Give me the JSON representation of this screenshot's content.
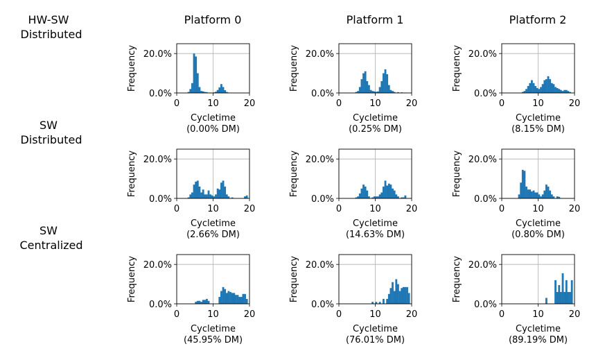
{
  "row_labels": [
    [
      "HW-SW",
      "Distributed"
    ],
    [
      "SW",
      "Distributed"
    ],
    [
      "SW",
      "Centralized"
    ]
  ],
  "column_titles": [
    "Platform 0",
    "Platform 1",
    "Platform 2"
  ],
  "bar_color": "#1f77b4",
  "chart_data": [
    {
      "type": "bar",
      "row": 0,
      "col": 0,
      "xlabel": "Cycletime",
      "subtitle": "(0.00% DM)",
      "ylabel": "Frequency",
      "xlim": [
        0,
        20
      ],
      "ylim": [
        0,
        0.25
      ],
      "xticks": [
        "0",
        "10",
        "20"
      ],
      "yticks": [
        "0.0%",
        "20.0%"
      ],
      "grid": true,
      "bin_width": 0.5,
      "bins": [
        [
          3,
          0.005
        ],
        [
          3.5,
          0.02
        ],
        [
          4,
          0.05
        ],
        [
          4.5,
          0.2
        ],
        [
          5,
          0.185
        ],
        [
          5.5,
          0.1
        ],
        [
          6,
          0.03
        ],
        [
          6.5,
          0.01
        ],
        [
          7,
          0.008
        ],
        [
          7.5,
          0.005
        ],
        [
          8,
          0.004
        ],
        [
          9,
          0.002
        ],
        [
          10,
          0.003
        ],
        [
          10.5,
          0.006
        ],
        [
          11,
          0.015
        ],
        [
          11.5,
          0.028
        ],
        [
          12,
          0.045
        ],
        [
          12.5,
          0.03
        ],
        [
          13,
          0.014
        ],
        [
          13.5,
          0.005
        ],
        [
          14,
          0.002
        ]
      ]
    },
    {
      "type": "bar",
      "row": 0,
      "col": 1,
      "xlabel": "Cycletime",
      "subtitle": "(0.25% DM)",
      "ylabel": "Frequency",
      "xlim": [
        0,
        20
      ],
      "ylim": [
        0,
        0.25
      ],
      "xticks": [
        "0",
        "10",
        "20"
      ],
      "yticks": [
        "0.0%",
        "20.0%"
      ],
      "grid": true,
      "bin_width": 0.5,
      "bins": [
        [
          4.5,
          0.005
        ],
        [
          5,
          0.01
        ],
        [
          5.5,
          0.03
        ],
        [
          6,
          0.07
        ],
        [
          6.5,
          0.1
        ],
        [
          7,
          0.11
        ],
        [
          7.5,
          0.06
        ],
        [
          8,
          0.04
        ],
        [
          8.5,
          0.015
        ],
        [
          9,
          0.01
        ],
        [
          9.5,
          0.008
        ],
        [
          10,
          0.006
        ],
        [
          10.5,
          0.008
        ],
        [
          11,
          0.03
        ],
        [
          11.5,
          0.06
        ],
        [
          12,
          0.1
        ],
        [
          12.5,
          0.12
        ],
        [
          13,
          0.095
        ],
        [
          13.5,
          0.04
        ],
        [
          14,
          0.015
        ],
        [
          14.5,
          0.01
        ],
        [
          15,
          0.005
        ],
        [
          16,
          0.004
        ],
        [
          17,
          0.003
        ],
        [
          18,
          0.002
        ]
      ]
    },
    {
      "type": "bar",
      "row": 0,
      "col": 2,
      "xlabel": "Cycletime",
      "subtitle": "(8.15% DM)",
      "ylabel": "Frequency",
      "xlim": [
        0,
        20
      ],
      "ylim": [
        0,
        0.25
      ],
      "xticks": [
        "0",
        "10",
        "20"
      ],
      "yticks": [
        "0.0%",
        "20.0%"
      ],
      "grid": true,
      "bin_width": 0.5,
      "bins": [
        [
          5.5,
          0.005
        ],
        [
          6,
          0.01
        ],
        [
          6.5,
          0.02
        ],
        [
          7,
          0.035
        ],
        [
          7.5,
          0.05
        ],
        [
          8,
          0.065
        ],
        [
          8.5,
          0.05
        ],
        [
          9,
          0.035
        ],
        [
          9.5,
          0.025
        ],
        [
          10,
          0.02
        ],
        [
          10.5,
          0.03
        ],
        [
          11,
          0.045
        ],
        [
          11.5,
          0.065
        ],
        [
          12,
          0.07
        ],
        [
          12.5,
          0.085
        ],
        [
          13,
          0.07
        ],
        [
          13.5,
          0.05
        ],
        [
          14,
          0.045
        ],
        [
          14.5,
          0.03
        ],
        [
          15,
          0.025
        ],
        [
          15.5,
          0.02
        ],
        [
          16,
          0.015
        ],
        [
          16.5,
          0.01
        ],
        [
          17,
          0.015
        ],
        [
          17.5,
          0.015
        ],
        [
          18,
          0.01
        ],
        [
          18.5,
          0.005
        ]
      ]
    },
    {
      "type": "bar",
      "row": 1,
      "col": 0,
      "xlabel": "Cycletime",
      "subtitle": "(2.66% DM)",
      "ylabel": "Frequency",
      "xlim": [
        0,
        20
      ],
      "ylim": [
        0,
        0.25
      ],
      "xticks": [
        "0",
        "10",
        "20"
      ],
      "yticks": [
        "0.0%",
        "20.0%"
      ],
      "grid": true,
      "bin_width": 0.5,
      "bins": [
        [
          3,
          0.005
        ],
        [
          3.5,
          0.02
        ],
        [
          4,
          0.03
        ],
        [
          4.5,
          0.07
        ],
        [
          5,
          0.085
        ],
        [
          5.5,
          0.09
        ],
        [
          6,
          0.06
        ],
        [
          6.5,
          0.03
        ],
        [
          7,
          0.045
        ],
        [
          7.5,
          0.02
        ],
        [
          8,
          0.02
        ],
        [
          8.5,
          0.04
        ],
        [
          9,
          0.02
        ],
        [
          9.5,
          0.015
        ],
        [
          10,
          0.01
        ],
        [
          10.5,
          0.02
        ],
        [
          11,
          0.05
        ],
        [
          11.5,
          0.045
        ],
        [
          12,
          0.08
        ],
        [
          12.5,
          0.09
        ],
        [
          13,
          0.06
        ],
        [
          13.5,
          0.02
        ],
        [
          14,
          0.01
        ],
        [
          15,
          0.005
        ],
        [
          18.5,
          0.01
        ],
        [
          19,
          0.015
        ]
      ]
    },
    {
      "type": "bar",
      "row": 1,
      "col": 1,
      "xlabel": "Cycletime",
      "subtitle": "(14.63% DM)",
      "ylabel": "Frequency",
      "xlim": [
        0,
        20
      ],
      "ylim": [
        0,
        0.25
      ],
      "xticks": [
        "0",
        "10",
        "20"
      ],
      "yticks": [
        "0.0%",
        "20.0%"
      ],
      "grid": true,
      "bin_width": 0.5,
      "bins": [
        [
          4.5,
          0.005
        ],
        [
          5,
          0.01
        ],
        [
          5.5,
          0.025
        ],
        [
          6,
          0.05
        ],
        [
          6.5,
          0.07
        ],
        [
          7,
          0.06
        ],
        [
          7.5,
          0.04
        ],
        [
          8,
          0.01
        ],
        [
          9,
          0.005
        ],
        [
          9.5,
          0.01
        ],
        [
          10,
          0.01
        ],
        [
          10.5,
          0.01
        ],
        [
          11,
          0.02
        ],
        [
          11.5,
          0.03
        ],
        [
          12,
          0.06
        ],
        [
          12.5,
          0.09
        ],
        [
          13,
          0.065
        ],
        [
          13.5,
          0.075
        ],
        [
          14,
          0.07
        ],
        [
          14.5,
          0.05
        ],
        [
          15,
          0.04
        ],
        [
          15.5,
          0.02
        ],
        [
          16,
          0.01
        ],
        [
          17,
          0.005
        ],
        [
          17.5,
          0.005
        ],
        [
          18,
          0.015
        ]
      ]
    },
    {
      "type": "bar",
      "row": 1,
      "col": 2,
      "xlabel": "Cycletime",
      "subtitle": "(0.80% DM)",
      "ylabel": "Frequency",
      "xlim": [
        0,
        20
      ],
      "ylim": [
        0,
        0.25
      ],
      "xticks": [
        "0",
        "10",
        "20"
      ],
      "yticks": [
        "0.0%",
        "20.0%"
      ],
      "grid": true,
      "bin_width": 0.5,
      "bins": [
        [
          4.5,
          0.02
        ],
        [
          5,
          0.08
        ],
        [
          5.5,
          0.145
        ],
        [
          6,
          0.14
        ],
        [
          6.5,
          0.06
        ],
        [
          7,
          0.045
        ],
        [
          7.5,
          0.045
        ],
        [
          8,
          0.035
        ],
        [
          8.5,
          0.04
        ],
        [
          9,
          0.03
        ],
        [
          9.5,
          0.03
        ],
        [
          10,
          0.02
        ],
        [
          10.5,
          0.01
        ],
        [
          11,
          0.02
        ],
        [
          11.5,
          0.04
        ],
        [
          12,
          0.07
        ],
        [
          12.5,
          0.06
        ],
        [
          13,
          0.04
        ],
        [
          13.5,
          0.02
        ],
        [
          14,
          0.01
        ],
        [
          15,
          0.01
        ],
        [
          15.5,
          0.008
        ]
      ]
    },
    {
      "type": "bar",
      "row": 2,
      "col": 0,
      "xlabel": "Cycletime",
      "subtitle": "(45.95% DM)",
      "ylabel": "Frequency",
      "xlim": [
        0,
        20
      ],
      "ylim": [
        0,
        0.25
      ],
      "xticks": [
        "0",
        "10",
        "20"
      ],
      "yticks": [
        "0.0%",
        "20.0%"
      ],
      "grid": true,
      "bin_width": 0.5,
      "bins": [
        [
          5,
          0.01
        ],
        [
          5.5,
          0.015
        ],
        [
          6,
          0.015
        ],
        [
          6.5,
          0.01
        ],
        [
          7,
          0.02
        ],
        [
          7.5,
          0.02
        ],
        [
          8,
          0.025
        ],
        [
          8.5,
          0.015
        ],
        [
          11.5,
          0.035
        ],
        [
          12,
          0.065
        ],
        [
          12.5,
          0.085
        ],
        [
          13,
          0.075
        ],
        [
          13.5,
          0.055
        ],
        [
          14,
          0.065
        ],
        [
          14.5,
          0.06
        ],
        [
          15,
          0.055
        ],
        [
          15.5,
          0.055
        ],
        [
          16,
          0.045
        ],
        [
          16.5,
          0.045
        ],
        [
          17,
          0.035
        ],
        [
          17.5,
          0.035
        ],
        [
          18,
          0.05
        ],
        [
          18.5,
          0.05
        ],
        [
          19,
          0.025
        ]
      ]
    },
    {
      "type": "bar",
      "row": 2,
      "col": 1,
      "xlabel": "Cycletime",
      "subtitle": "(76.01% DM)",
      "ylabel": "Frequency",
      "xlim": [
        0,
        20
      ],
      "ylim": [
        0,
        0.25
      ],
      "xticks": [
        "0",
        "10",
        "20"
      ],
      "yticks": [
        "0.0%",
        "20.0%"
      ],
      "grid": true,
      "bin_width": 0.5,
      "bins": [
        [
          9,
          0.01
        ],
        [
          10,
          0.01
        ],
        [
          11,
          0.01
        ],
        [
          12,
          0.025
        ],
        [
          13,
          0.025
        ],
        [
          13.5,
          0.05
        ],
        [
          14,
          0.08
        ],
        [
          14.5,
          0.11
        ],
        [
          15,
          0.065
        ],
        [
          15.5,
          0.125
        ],
        [
          16,
          0.1
        ],
        [
          16.5,
          0.065
        ],
        [
          17,
          0.08
        ],
        [
          17.5,
          0.085
        ],
        [
          18,
          0.085
        ],
        [
          18.5,
          0.085
        ],
        [
          19,
          0.055
        ]
      ]
    },
    {
      "type": "bar",
      "row": 2,
      "col": 2,
      "xlabel": "Cycletime",
      "subtitle": "(89.19% DM)",
      "ylabel": "Frequency",
      "xlim": [
        0,
        20
      ],
      "ylim": [
        0,
        0.25
      ],
      "xticks": [
        "0",
        "10",
        "20"
      ],
      "yticks": [
        "0.0%",
        "20.0%"
      ],
      "grid": true,
      "bin_width": 0.5,
      "bins": [
        [
          12,
          0.03
        ],
        [
          14.5,
          0.12
        ],
        [
          15,
          0.06
        ],
        [
          15.5,
          0.095
        ],
        [
          16,
          0.06
        ],
        [
          16.5,
          0.155
        ],
        [
          17,
          0.06
        ],
        [
          17.5,
          0.12
        ],
        [
          18,
          0.06
        ],
        [
          18.5,
          0.06
        ],
        [
          19,
          0.12
        ]
      ]
    }
  ]
}
